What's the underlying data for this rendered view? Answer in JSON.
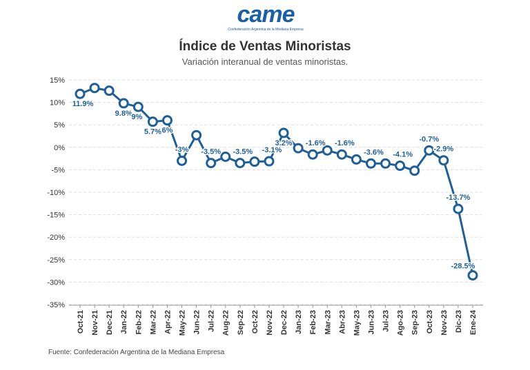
{
  "logo": {
    "word": "came",
    "tagline": "Confederación Argentina de la Mediana Empresa"
  },
  "chart_data": {
    "type": "line",
    "title": "Índice de Ventas Minoristas",
    "subtitle": "Variación interanual de ventas minoristas.",
    "source": "Fuente: Confederación Argentina de la Mediana Empresa",
    "categories": [
      "Oct-21",
      "Nov-21",
      "Dec-21",
      "Jan-22",
      "Feb-22",
      "Mar-22",
      "Apr-22",
      "May-22",
      "Jun-22",
      "Jul-22",
      "Aug-22",
      "Sep-22",
      "Oct-22",
      "Nov-22",
      "Dec-22",
      "Jan-23",
      "Feb-23",
      "Mar-23",
      "Abr-23",
      "May-23",
      "Jun-23",
      "Jul-23",
      "Ago-23",
      "Sep-23",
      "Oct-23",
      "Nov-23",
      "Dic-23",
      "Ene-24"
    ],
    "values": [
      11.9,
      13.2,
      12.6,
      9.8,
      9,
      5.7,
      6,
      -3,
      2.7,
      -3.5,
      -2.1,
      -3.5,
      -3.2,
      -3.1,
      3.2,
      -0.2,
      -1.6,
      -0.7,
      -1.6,
      -2.7,
      -3.6,
      -3.6,
      -4.1,
      -5.2,
      -0.7,
      -2.9,
      -13.7,
      -28.5
    ],
    "data_labels": [
      "11.9%",
      null,
      null,
      "9.8%",
      "9%",
      "5.7%",
      "6%",
      "-3%",
      null,
      "-3.5%",
      null,
      "-3.5%",
      null,
      "-3.1%",
      "3.2%",
      null,
      "-1.6%",
      null,
      "-1.6%",
      null,
      "-3.6%",
      null,
      "-4.1%",
      null,
      "-0.7%",
      "-2.9%",
      "-13.7%",
      "-28.5%"
    ],
    "y_ticks": [
      "15%",
      "10%",
      "5%",
      "0%",
      "-5%",
      "-10%",
      "-15%",
      "-20%",
      "-25%",
      "-30%",
      "-35%"
    ],
    "ylim": [
      -35,
      15
    ],
    "grid": true,
    "color": "#1f5f99"
  }
}
